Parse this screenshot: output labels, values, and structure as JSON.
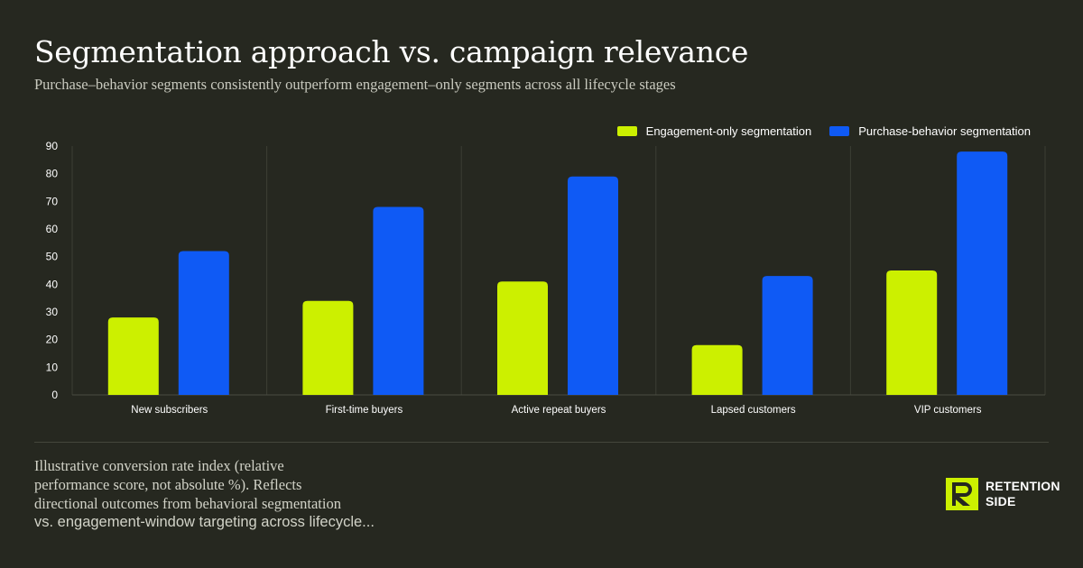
{
  "header": {
    "title": "Segmentation approach vs. campaign relevance",
    "subtitle": "Purchase–behavior segments consistently outperform engagement–only segments across all lifecycle stages"
  },
  "chart_data": {
    "type": "bar",
    "categories": [
      "New subscribers",
      "First-time buyers",
      "Active repeat buyers",
      "Lapsed customers",
      "VIP customers"
    ],
    "series": [
      {
        "name": "Engagement-only segmentation",
        "values": [
          28,
          34,
          41,
          18,
          45
        ],
        "color": "#ccf000"
      },
      {
        "name": "Purchase-behavior segmentation",
        "values": [
          52,
          68,
          79,
          43,
          88
        ],
        "color": "#0f5af5"
      }
    ],
    "ylim": [
      0,
      90
    ],
    "yticks": [
      "0",
      "10",
      "20",
      "30",
      "40",
      "50",
      "60",
      "70",
      "80",
      "90"
    ],
    "grid": "vertical category separators",
    "legend_position": "top-right"
  },
  "footnote": {
    "line1": "Illustrative conversion rate index (relative",
    "line2": "performance score, not absolute %). Reflects",
    "line3": "directional outcomes from behavioral segmentation",
    "line4": "vs. engagement-window targeting across lifecycle..."
  },
  "brand": {
    "line1": "RETENTION",
    "line2": "SIDE",
    "logo_icon": "retention-side-logo",
    "accent": "#ccf000"
  }
}
